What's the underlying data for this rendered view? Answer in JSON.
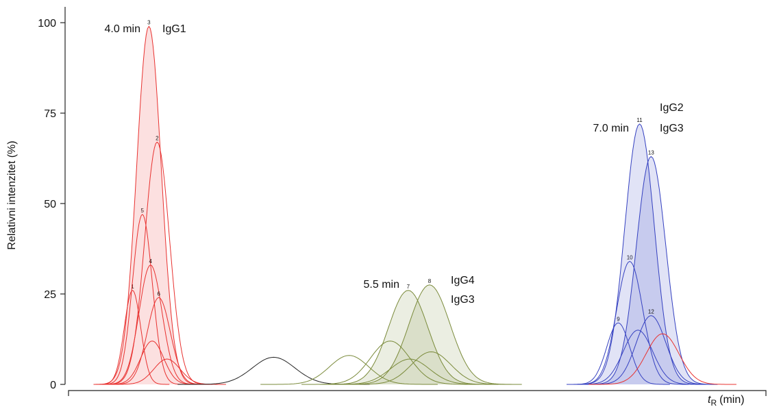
{
  "chart_data": {
    "type": "peaks",
    "y_label": "Relativni intenzitet (%)",
    "x_label": {
      "symbol": "t",
      "subscript": "R",
      "unit": "(min)"
    },
    "xlim": [
      3.5,
      7.75
    ],
    "ylim": [
      0,
      104
    ],
    "yticks": [
      0,
      25,
      50,
      75,
      100
    ],
    "annotations": [
      "4.0 min",
      "IgG1",
      "5.5 min",
      "IgG4",
      "IgG3",
      "7.0 min",
      "IgG2",
      "IgG3"
    ],
    "peaks": [
      {
        "label": "1",
        "x": 3.89,
        "height": 26,
        "width": 0.05,
        "color": "#e8312f",
        "filled": false
      },
      {
        "label": "5",
        "x": 3.95,
        "height": 47,
        "width": 0.06,
        "color": "#e8312f",
        "filled": false
      },
      {
        "label": "3",
        "x": 3.99,
        "height": 99,
        "width": 0.075,
        "color": "#e8312f",
        "filled": true
      },
      {
        "label": "4",
        "x": 4.0,
        "height": 33,
        "width": 0.07,
        "color": "#e8312f",
        "filled": false
      },
      {
        "label": "2",
        "x": 4.04,
        "height": 67,
        "width": 0.075,
        "color": "#e8312f",
        "filled": false
      },
      {
        "label": "6",
        "x": 4.05,
        "height": 24,
        "width": 0.07,
        "color": "#e8312f",
        "filled": false
      },
      {
        "x": 4.01,
        "height": 12,
        "width": 0.07,
        "color": "#e8312f",
        "filled": false
      },
      {
        "x": 4.1,
        "height": 7,
        "width": 0.08,
        "color": "#e8312f",
        "filled": false
      },
      {
        "x": 4.75,
        "height": 7.5,
        "width": 0.13,
        "color": "#222222",
        "filled": false
      },
      {
        "x": 5.21,
        "height": 8,
        "width": 0.12,
        "color": "#7a8a3a",
        "filled": false
      },
      {
        "x": 5.46,
        "height": 12,
        "width": 0.12,
        "color": "#7a8a3a",
        "filled": false
      },
      {
        "label": "7",
        "x": 5.57,
        "height": 26,
        "width": 0.12,
        "color": "#7a8a3a",
        "filled": true
      },
      {
        "x": 5.58,
        "height": 7,
        "width": 0.12,
        "color": "#7a8a3a",
        "filled": false
      },
      {
        "label": "8",
        "x": 5.7,
        "height": 27.5,
        "width": 0.125,
        "color": "#7a8a3a",
        "filled": true
      },
      {
        "x": 5.71,
        "height": 9,
        "width": 0.12,
        "color": "#7a8a3a",
        "filled": false
      },
      {
        "label": "9",
        "x": 6.85,
        "height": 17,
        "width": 0.07,
        "color": "#3440c0",
        "filled": false
      },
      {
        "label": "10",
        "x": 6.92,
        "height": 34,
        "width": 0.08,
        "color": "#3440c0",
        "filled": false
      },
      {
        "x": 6.97,
        "height": 15,
        "width": 0.09,
        "color": "#3440c0",
        "filled": false
      },
      {
        "label": "11",
        "x": 6.98,
        "height": 72,
        "width": 0.09,
        "color": "#3440c0",
        "filled": true
      },
      {
        "label": "13",
        "x": 7.05,
        "height": 63,
        "width": 0.09,
        "color": "#3440c0",
        "filled": true
      },
      {
        "label": "12",
        "x": 7.05,
        "height": 19,
        "width": 0.09,
        "color": "#3440c0",
        "filled": false
      },
      {
        "x": 7.12,
        "height": 14,
        "width": 0.1,
        "color": "#e8312f",
        "filled": false
      }
    ]
  }
}
